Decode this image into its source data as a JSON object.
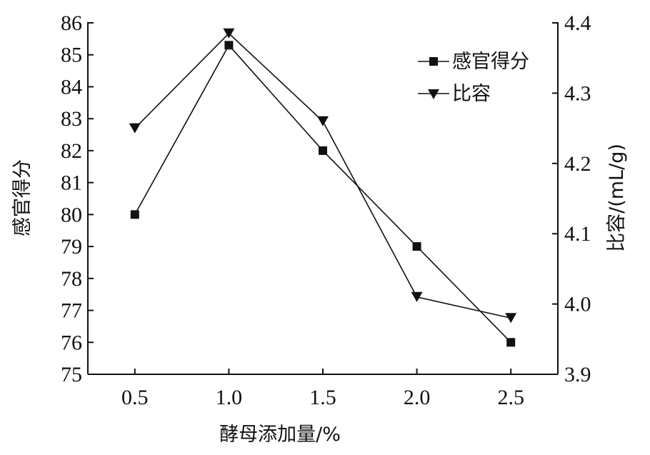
{
  "chart_data": {
    "type": "line",
    "x": [
      0.5,
      1.0,
      1.5,
      2.0,
      2.5
    ],
    "x_tick_labels": [
      "0.5",
      "1.0",
      "1.5",
      "2.0",
      "2.5"
    ],
    "xlim": [
      0.25,
      2.75
    ],
    "xlabel": "酵母添加量/%",
    "y_left": {
      "label": "感官得分",
      "lim": [
        75,
        86
      ],
      "ticks": [
        "75",
        "76",
        "77",
        "78",
        "79",
        "80",
        "81",
        "82",
        "83",
        "84",
        "85",
        "86"
      ]
    },
    "y_right": {
      "label": "比容/(mL/g)",
      "lim": [
        3.9,
        4.4
      ],
      "ticks": [
        "3.9",
        "4.0",
        "4.1",
        "4.2",
        "4.3",
        "4.4"
      ]
    },
    "series": [
      {
        "name": "感官得分",
        "axis": "left",
        "marker": "square",
        "values": [
          80.0,
          85.3,
          82.0,
          79.0,
          76.0
        ]
      },
      {
        "name": "比容",
        "axis": "right",
        "marker": "triangle-down",
        "values": [
          4.25,
          4.385,
          4.26,
          4.01,
          3.98
        ]
      }
    ],
    "legend": "top-right",
    "grid": false
  }
}
